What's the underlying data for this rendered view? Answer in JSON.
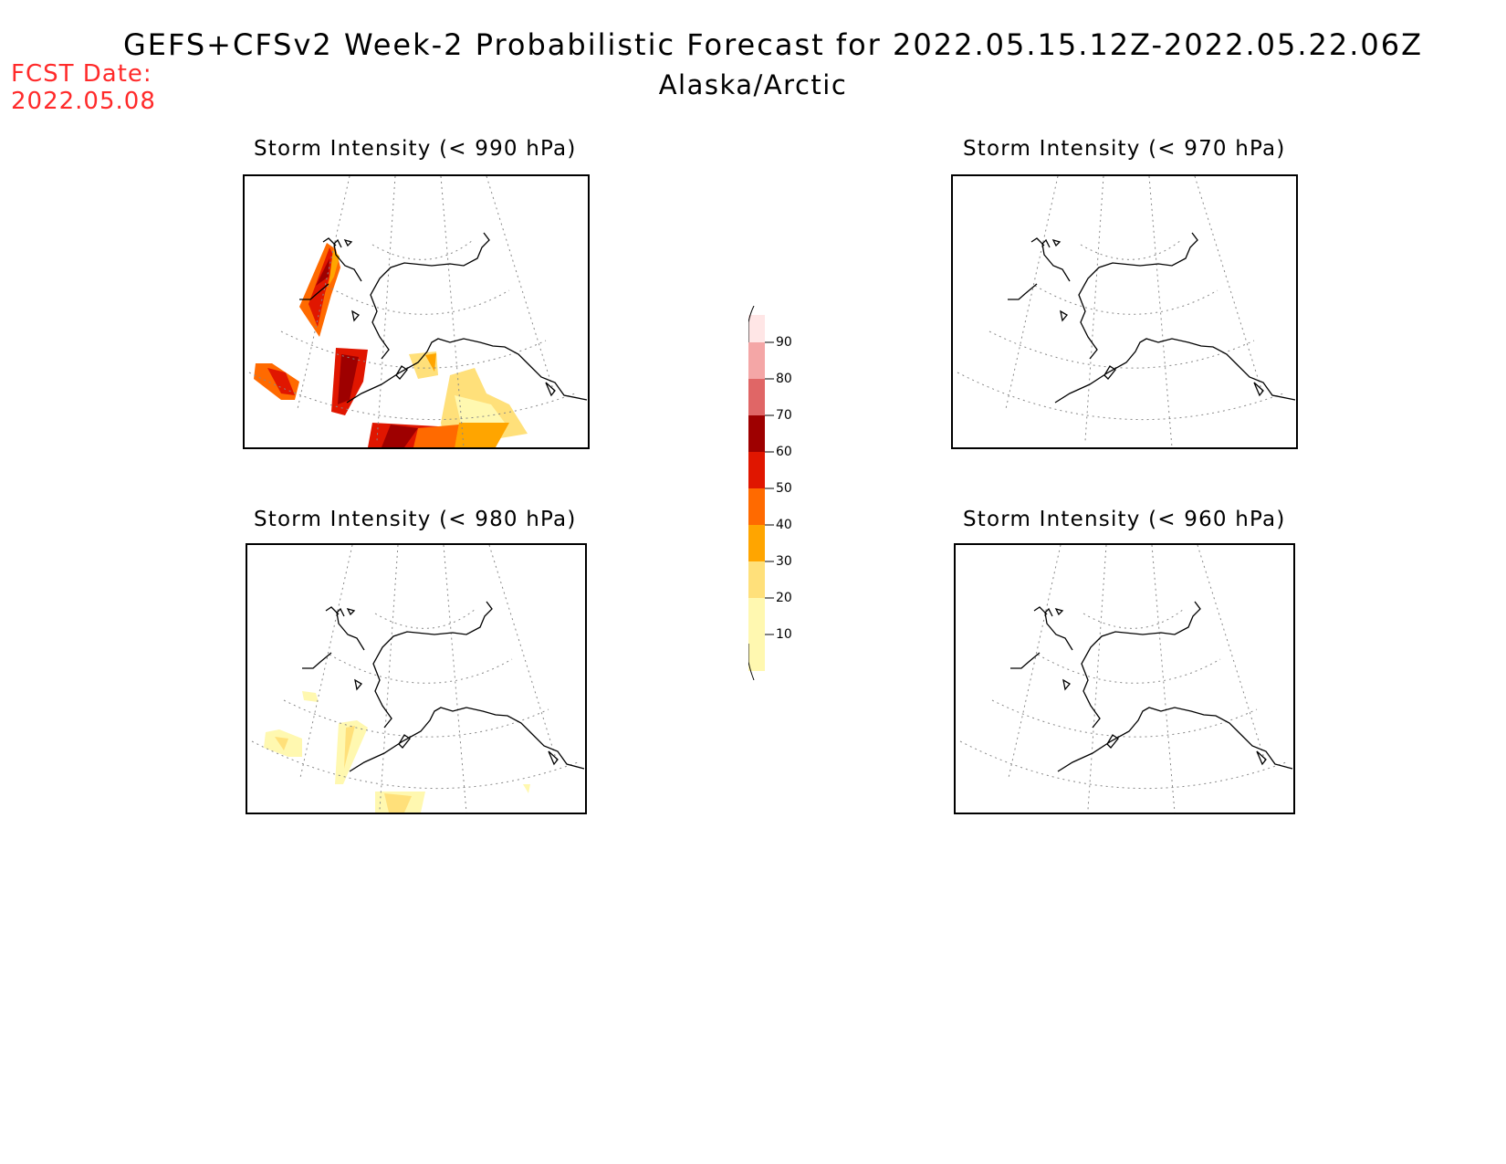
{
  "header": {
    "title": "GEFS+CFSv2 Week-2 Probabilistic Forecast for 2022.05.15.12Z-2022.05.22.06Z",
    "subtitle": "Alaska/Arctic",
    "fcst_label": "FCST Date:",
    "fcst_date": "2022.05.08"
  },
  "panels": [
    {
      "title": "Storm Intensity (< 990 hPa)"
    },
    {
      "title": "Storm Intensity (< 970 hPa)"
    },
    {
      "title": "Storm Intensity (< 980 hPa)"
    },
    {
      "title": "Storm Intensity (< 960 hPa)"
    }
  ],
  "colorbar": {
    "labels": [
      "90",
      "80",
      "70",
      "60",
      "50",
      "40",
      "30",
      "20",
      "10"
    ],
    "colors": [
      "#ffe6e6",
      "#f4a6a6",
      "#e06666",
      "#9e0000",
      "#e01600",
      "#ff6a00",
      "#ffa500",
      "#ffe07a",
      "#fff8b0"
    ]
  }
}
